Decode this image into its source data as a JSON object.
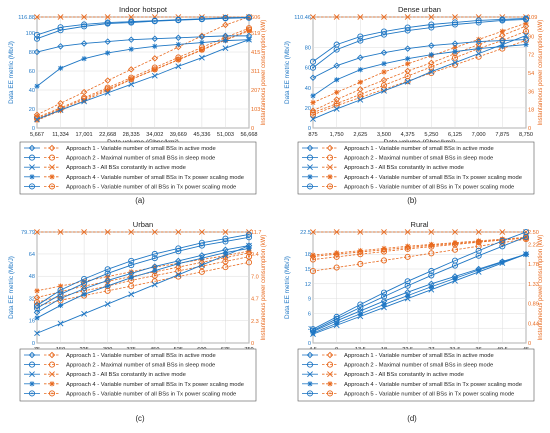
{
  "colors": {
    "blue": "#1f77c4",
    "orange": "#e86a1f",
    "grid": "#dcdcdc",
    "axis": "#555555"
  },
  "chart_data": [
    {
      "type": "line",
      "panel_label": "(a)",
      "title": "Indoor hotspot",
      "xlabel": "Data volume (Gbps/km²)",
      "ylabel_left": "Data EE metric (Mb/J)",
      "ylabel_right": "Instantaneous power consumption (kW)",
      "x": [
        5667,
        11334,
        17001,
        22668,
        28335,
        34002,
        39669,
        45336,
        51003,
        56668
      ],
      "x_ticks": [
        "5,667",
        "11,334",
        "17,001",
        "22,668",
        "28,335",
        "34,002",
        "39,669",
        "45,336",
        "51,003",
        "56,668"
      ],
      "ylim_left": [
        0,
        116.88
      ],
      "y_ticks_left": [
        "0",
        "20",
        "40",
        "60",
        "80",
        "100",
        "116.88"
      ],
      "ylim_right": [
        0,
        606
      ],
      "y_ticks_right": [
        "0",
        "103",
        "207",
        "311",
        "415",
        "519",
        "606"
      ],
      "ee_series": [
        {
          "name": "Approach 1 - Variable number of small BSs in active mode",
          "values": [
            80,
            86,
            89,
            91,
            93,
            94,
            95,
            96,
            97,
            97
          ]
        },
        {
          "name": "Approach 2 - Maximal number of small BSs in sleep mode",
          "values": [
            98,
            106,
            109,
            111,
            112,
            113,
            114,
            115,
            116,
            116.5
          ]
        },
        {
          "name": "Approach 3 - All BSs constantly in active mode",
          "values": [
            9,
            19,
            28,
            37,
            46,
            55,
            65,
            74,
            84,
            93
          ]
        },
        {
          "name": "Approach 4 - Variable number of small BSs in Tx power scaling mode",
          "values": [
            44,
            63,
            73,
            79,
            83,
            86,
            88,
            90,
            92,
            93
          ]
        },
        {
          "name": "Approach 5 - Variable number of all BSs in Tx power scaling mode",
          "values": [
            94,
            103,
            107,
            110,
            111,
            112.5,
            113.5,
            114.5,
            115.5,
            116
          ]
        }
      ],
      "power_series": [
        {
          "values": [
            72,
            135,
            196,
            259,
            320,
            380,
            442,
            503,
            563,
            606
          ]
        },
        {
          "values": [
            58,
            110,
            165,
            220,
            275,
            330,
            385,
            440,
            495,
            545
          ]
        },
        {
          "values": [
            606,
            606,
            606,
            606,
            606,
            606,
            606,
            606,
            606,
            606
          ]
        },
        {
          "values": [
            42,
            95,
            150,
            205,
            265,
            318,
            372,
            425,
            480,
            530
          ]
        },
        {
          "values": [
            52,
            104,
            158,
            212,
            266,
            320,
            374,
            428,
            482,
            536
          ]
        }
      ]
    },
    {
      "type": "line",
      "panel_label": "(b)",
      "title": "Dense urban",
      "xlabel": "Data volume (Gbps/km²)",
      "ylabel_left": "Data EE metric (Mb/J)",
      "ylabel_right": "Instantaneous power consumption (kW)",
      "x": [
        875,
        1750,
        2625,
        3500,
        4375,
        5250,
        6125,
        7000,
        7875,
        8750
      ],
      "x_ticks": [
        "875",
        "1,750",
        "2,625",
        "3,500",
        "4,375",
        "5,250",
        "6,125",
        "7,000",
        "7,875",
        "8,750"
      ],
      "ylim_left": [
        0,
        110.46
      ],
      "y_ticks_left": [
        "0",
        "20",
        "40",
        "60",
        "80",
        "110.46"
      ],
      "ylim_right": [
        0,
        109
      ],
      "y_ticks_right": [
        "0",
        "18",
        "36",
        "54",
        "72",
        "90",
        "109"
      ],
      "ee_series": [
        {
          "name": "Approach 1 - Variable number of small BSs in active mode",
          "values": [
            50,
            62,
            70,
            75,
            79,
            82,
            84,
            86,
            87,
            88
          ]
        },
        {
          "name": "Approach 2 - Maximal number of small BSs in sleep mode",
          "values": [
            66,
            83,
            91,
            96,
            100,
            103,
            105,
            107,
            108,
            109
          ]
        },
        {
          "name": "Approach 3 - All BSs constantly in active mode",
          "values": [
            9,
            19,
            28,
            37,
            46,
            56,
            65,
            74,
            83,
            92
          ]
        },
        {
          "name": "Approach 4 - Variable number of small BSs in Tx power scaling mode",
          "values": [
            32,
            48,
            58,
            64,
            69,
            73,
            76,
            79,
            81,
            83
          ]
        },
        {
          "name": "Approach 5 - Variable number of all BSs in Tx power scaling mode",
          "values": [
            60,
            78,
            87,
            93,
            97,
            100,
            103,
            105,
            107,
            108
          ]
        }
      ],
      "power_series": [
        {
          "values": [
            17,
            28,
            38,
            47,
            56,
            64,
            73,
            82,
            91,
            100
          ]
        },
        {
          "values": [
            13,
            22,
            30,
            38,
            46,
            54,
            62,
            70,
            78,
            86
          ]
        },
        {
          "values": [
            109,
            109,
            109,
            109,
            109,
            109,
            109,
            109,
            109,
            109
          ]
        },
        {
          "values": [
            25,
            35,
            45,
            55,
            63,
            71,
            79,
            87,
            95,
            103
          ]
        },
        {
          "values": [
            15,
            24,
            33,
            42,
            51,
            60,
            69,
            78,
            86,
            95
          ]
        }
      ]
    },
    {
      "type": "line",
      "panel_label": "(c)",
      "title": "Urban",
      "xlabel": "Data volume (Gbps/km²)",
      "ylabel_left": "Data EE metric (Mb/J)",
      "ylabel_right": "Instantaneous power consumption (kW)",
      "x": [
        75,
        150,
        225,
        300,
        375,
        450,
        525,
        600,
        675,
        750
      ],
      "x_ticks": [
        "75",
        "150",
        "225",
        "300",
        "375",
        "450",
        "525",
        "600",
        "675",
        "750"
      ],
      "ylim_left": [
        0,
        79.79
      ],
      "y_ticks_left": [
        "0",
        "16",
        "32",
        "48",
        "64",
        "79.79"
      ],
      "ylim_right": [
        0,
        11.7
      ],
      "y_ticks_right": [
        "0",
        "2.3",
        "4.7",
        "7.0",
        "9.4",
        "11.7"
      ],
      "ee_series": [
        {
          "name": "Approach 1 - Variable number of small BSs in active mode",
          "values": [
            22,
            32,
            39,
            45,
            50,
            55,
            59,
            63,
            67,
            70
          ]
        },
        {
          "name": "Approach 2 - Maximal number of small BSs in sleep mode",
          "values": [
            27,
            38,
            46,
            53,
            59,
            64,
            68,
            72,
            75,
            78
          ]
        },
        {
          "name": "Approach 3 - All BSs constantly in active mode",
          "values": [
            7,
            14,
            21,
            28,
            35,
            42,
            49,
            56,
            63,
            70
          ]
        },
        {
          "name": "Approach 4 - Variable number of small BSs in Tx power scaling mode",
          "values": [
            18,
            27,
            35,
            41,
            47,
            52,
            57,
            61,
            65,
            68
          ]
        },
        {
          "name": "Approach 5 - Variable number of all BSs in Tx power scaling mode",
          "values": [
            25,
            35,
            43,
            50,
            56,
            61,
            66,
            70,
            73,
            76
          ]
        }
      ],
      "power_series": [
        {
          "values": [
            4.8,
            5.4,
            6.0,
            6.5,
            7.0,
            7.5,
            8.0,
            8.5,
            9.0,
            9.5
          ]
        },
        {
          "values": [
            3.9,
            4.5,
            5.0,
            5.5,
            6.0,
            6.5,
            7.0,
            7.5,
            8.0,
            8.5
          ]
        },
        {
          "values": [
            11.7,
            11.7,
            11.7,
            11.7,
            11.7,
            11.7,
            11.7,
            11.7,
            11.7,
            11.7
          ]
        },
        {
          "values": [
            5.5,
            6.0,
            6.5,
            7.0,
            7.5,
            8.0,
            8.4,
            8.8,
            9.2,
            9.7
          ]
        },
        {
          "values": [
            4.3,
            4.9,
            5.5,
            6.0,
            6.6,
            7.1,
            7.6,
            8.1,
            8.6,
            9.1
          ]
        }
      ]
    },
    {
      "type": "line",
      "panel_label": "(d)",
      "title": "Rural",
      "xlabel": "Data volume (Gbps/km²)",
      "ylabel_left": "Data EE metric (Mb/J)",
      "ylabel_right": "Instantaneous power consumption (kW)",
      "x": [
        4.5,
        9,
        13.5,
        18,
        22.5,
        27,
        31.5,
        36,
        40.5,
        45
      ],
      "x_ticks": [
        "4.5",
        "9",
        "13.5",
        "18",
        "22.5",
        "27",
        "31.5",
        "36",
        "40.5",
        "45"
      ],
      "ylim_left": [
        0,
        22.5
      ],
      "y_ticks_left": [
        "0",
        "3",
        "6",
        "9",
        "12",
        "15",
        "18",
        "22.5"
      ],
      "ylim_right": [
        0,
        2.5
      ],
      "y_ticks_right": [
        "0",
        "0.44",
        "0.89",
        "1.33",
        "1.78",
        "2.22",
        "2.50"
      ],
      "ee_series": [
        {
          "name": "Approach 1 - Variable number of small BSs in active mode",
          "values": [
            2.3,
            4.5,
            6.5,
            8.5,
            10.3,
            12.0,
            13.5,
            15.0,
            16.5,
            18.0
          ]
        },
        {
          "name": "Approach 2 - Maximal number of small BSs in sleep mode",
          "values": [
            2.8,
            5.3,
            7.8,
            10.2,
            12.5,
            14.6,
            16.7,
            18.7,
            20.7,
            22.5
          ]
        },
        {
          "name": "Approach 3 - All BSs constantly in active mode",
          "values": [
            1.8,
            3.6,
            5.4,
            7.2,
            9.0,
            10.8,
            12.6,
            14.4,
            16.2,
            18.0
          ]
        },
        {
          "name": "Approach 4 - Variable number of small BSs in Tx power scaling mode",
          "values": [
            2.0,
            4.0,
            5.9,
            7.8,
            9.6,
            11.4,
            13.1,
            14.8,
            16.4,
            18.0
          ]
        },
        {
          "name": "Approach 5 - Variable number of all BSs in Tx power scaling mode",
          "values": [
            2.5,
            4.9,
            7.2,
            9.4,
            11.6,
            13.7,
            15.7,
            17.7,
            19.6,
            21.5
          ]
        }
      ],
      "power_series": [
        {
          "values": [
            1.95,
            2.0,
            2.05,
            2.1,
            2.15,
            2.2,
            2.24,
            2.28,
            2.32,
            2.36
          ]
        },
        {
          "values": [
            1.62,
            1.7,
            1.78,
            1.86,
            1.94,
            2.02,
            2.1,
            2.18,
            2.26,
            2.34
          ]
        },
        {
          "values": [
            2.5,
            2.5,
            2.5,
            2.5,
            2.5,
            2.5,
            2.5,
            2.5,
            2.5,
            2.5
          ]
        },
        {
          "values": [
            1.98,
            2.03,
            2.08,
            2.13,
            2.18,
            2.22,
            2.26,
            2.3,
            2.34,
            2.38
          ]
        },
        {
          "values": [
            1.88,
            1.94,
            2.0,
            2.06,
            2.12,
            2.17,
            2.22,
            2.27,
            2.32,
            2.37
          ]
        }
      ]
    }
  ]
}
